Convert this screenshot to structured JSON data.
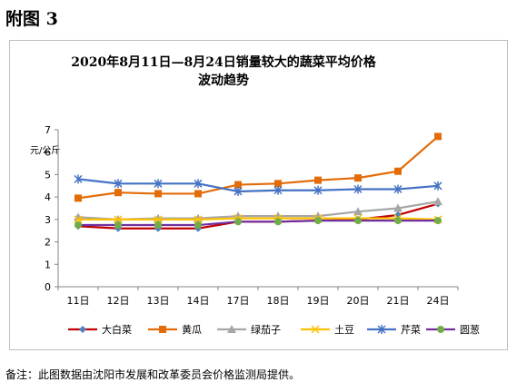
{
  "heading": "附图 3",
  "note": "备注：此图数据由沈阳市发展和改革委员会价格监测局提供。",
  "chart_data": {
    "type": "line",
    "title_line1": "2020年8月11日—8月24日销量较大的蔬菜平均价格",
    "title_line2": "波动趋势",
    "ylabel": "元/公斤",
    "xlabel": "",
    "categories": [
      "11日",
      "12日",
      "13日",
      "14日",
      "17日",
      "18日",
      "19日",
      "20日",
      "21日",
      "24日"
    ],
    "ylim": [
      0,
      7
    ],
    "yticks": [
      0,
      1,
      2,
      3,
      4,
      5,
      6,
      7
    ],
    "grid": false,
    "legend_position": "bottom",
    "series": [
      {
        "name": "大白菜",
        "color": "#c00000",
        "marker": "diamond",
        "markerColor": "#4f81bd",
        "values": [
          2.7,
          2.6,
          2.6,
          2.6,
          2.9,
          2.9,
          2.95,
          3.0,
          3.2,
          3.7
        ]
      },
      {
        "name": "黄瓜",
        "color": "#e36c09",
        "marker": "square",
        "markerColor": "#e36c09",
        "values": [
          3.95,
          4.2,
          4.15,
          4.15,
          4.55,
          4.6,
          4.75,
          4.85,
          5.15,
          6.7
        ]
      },
      {
        "name": "绿茄子",
        "color": "#a6a6a6",
        "marker": "triangle",
        "markerColor": "#a6a6a6",
        "values": [
          3.1,
          3.0,
          3.05,
          3.05,
          3.15,
          3.15,
          3.15,
          3.35,
          3.5,
          3.8
        ]
      },
      {
        "name": "土豆",
        "color": "#ffc000",
        "marker": "x",
        "markerColor": "#ffc000",
        "values": [
          3.0,
          3.0,
          3.0,
          3.0,
          3.05,
          3.05,
          3.05,
          3.05,
          3.05,
          3.0
        ]
      },
      {
        "name": "芹菜",
        "color": "#4472c4",
        "marker": "star",
        "markerColor": "#4472c4",
        "values": [
          4.8,
          4.6,
          4.6,
          4.6,
          4.25,
          4.3,
          4.3,
          4.35,
          4.35,
          4.5
        ]
      },
      {
        "name": "圆葱",
        "color": "#7030a0",
        "marker": "circle",
        "markerColor": "#70ad47",
        "values": [
          2.75,
          2.75,
          2.75,
          2.75,
          2.9,
          2.9,
          2.95,
          2.95,
          2.95,
          2.95
        ]
      }
    ]
  }
}
